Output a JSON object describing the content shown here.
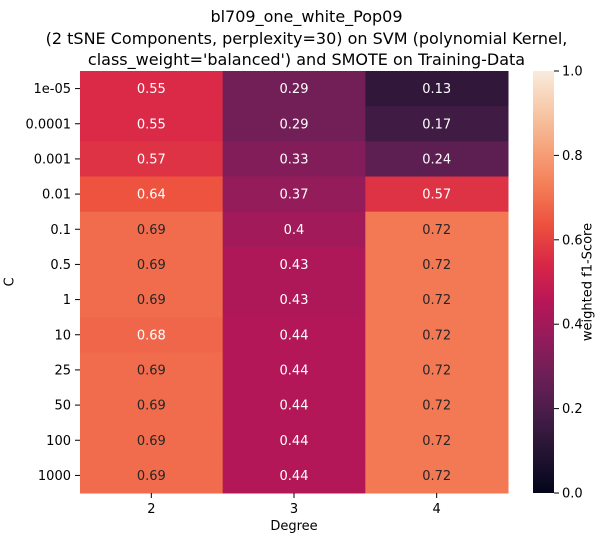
{
  "chart_data": {
    "type": "heatmap",
    "title_lines": [
      "bl709_one_white_Pop09",
      "(2 tSNE Components, perplexity=30) on SVM (polynomial Kernel,",
      "class_weight='balanced') and SMOTE on Training-Data"
    ],
    "xlabel": "Degree",
    "ylabel": "C",
    "x_categories": [
      "2",
      "3",
      "4"
    ],
    "y_categories": [
      "1e-05",
      "0.0001",
      "0.001",
      "0.01",
      "0.1",
      "0.5",
      "1",
      "10",
      "25",
      "50",
      "100",
      "1000"
    ],
    "values": [
      [
        0.55,
        0.29,
        0.13
      ],
      [
        0.55,
        0.29,
        0.17
      ],
      [
        0.57,
        0.33,
        0.24
      ],
      [
        0.64,
        0.37,
        0.57
      ],
      [
        0.69,
        0.4,
        0.72
      ],
      [
        0.69,
        0.43,
        0.72
      ],
      [
        0.69,
        0.43,
        0.72
      ],
      [
        0.68,
        0.44,
        0.72
      ],
      [
        0.69,
        0.44,
        0.72
      ],
      [
        0.69,
        0.44,
        0.72
      ],
      [
        0.69,
        0.44,
        0.72
      ],
      [
        0.69,
        0.44,
        0.72
      ]
    ],
    "cell_labels": [
      [
        "0.55",
        "0.29",
        "0.13"
      ],
      [
        "0.55",
        "0.29",
        "0.17"
      ],
      [
        "0.57",
        "0.33",
        "0.24"
      ],
      [
        "0.64",
        "0.37",
        "0.57"
      ],
      [
        "0.69",
        "0.4",
        "0.72"
      ],
      [
        "0.69",
        "0.43",
        "0.72"
      ],
      [
        "0.69",
        "0.43",
        "0.72"
      ],
      [
        "0.68",
        "0.44",
        "0.72"
      ],
      [
        "0.69",
        "0.44",
        "0.72"
      ],
      [
        "0.69",
        "0.44",
        "0.72"
      ],
      [
        "0.69",
        "0.44",
        "0.72"
      ],
      [
        "0.69",
        "0.44",
        "0.72"
      ]
    ],
    "colorbar": {
      "label": "weighted f1-Score",
      "range": [
        0.0,
        1.0
      ],
      "ticks": [
        "0.0",
        "0.2",
        "0.4",
        "0.6",
        "0.8",
        "1.0"
      ],
      "colormap": "rocket"
    },
    "colormap_stops": [
      "#03051a",
      "#221331",
      "#451c47",
      "#6a1f56",
      "#921c5b",
      "#b91657",
      "#d92847",
      "#ed513e",
      "#f47d57",
      "#f6a47c",
      "#f7c9aa",
      "#faebdd"
    ]
  }
}
